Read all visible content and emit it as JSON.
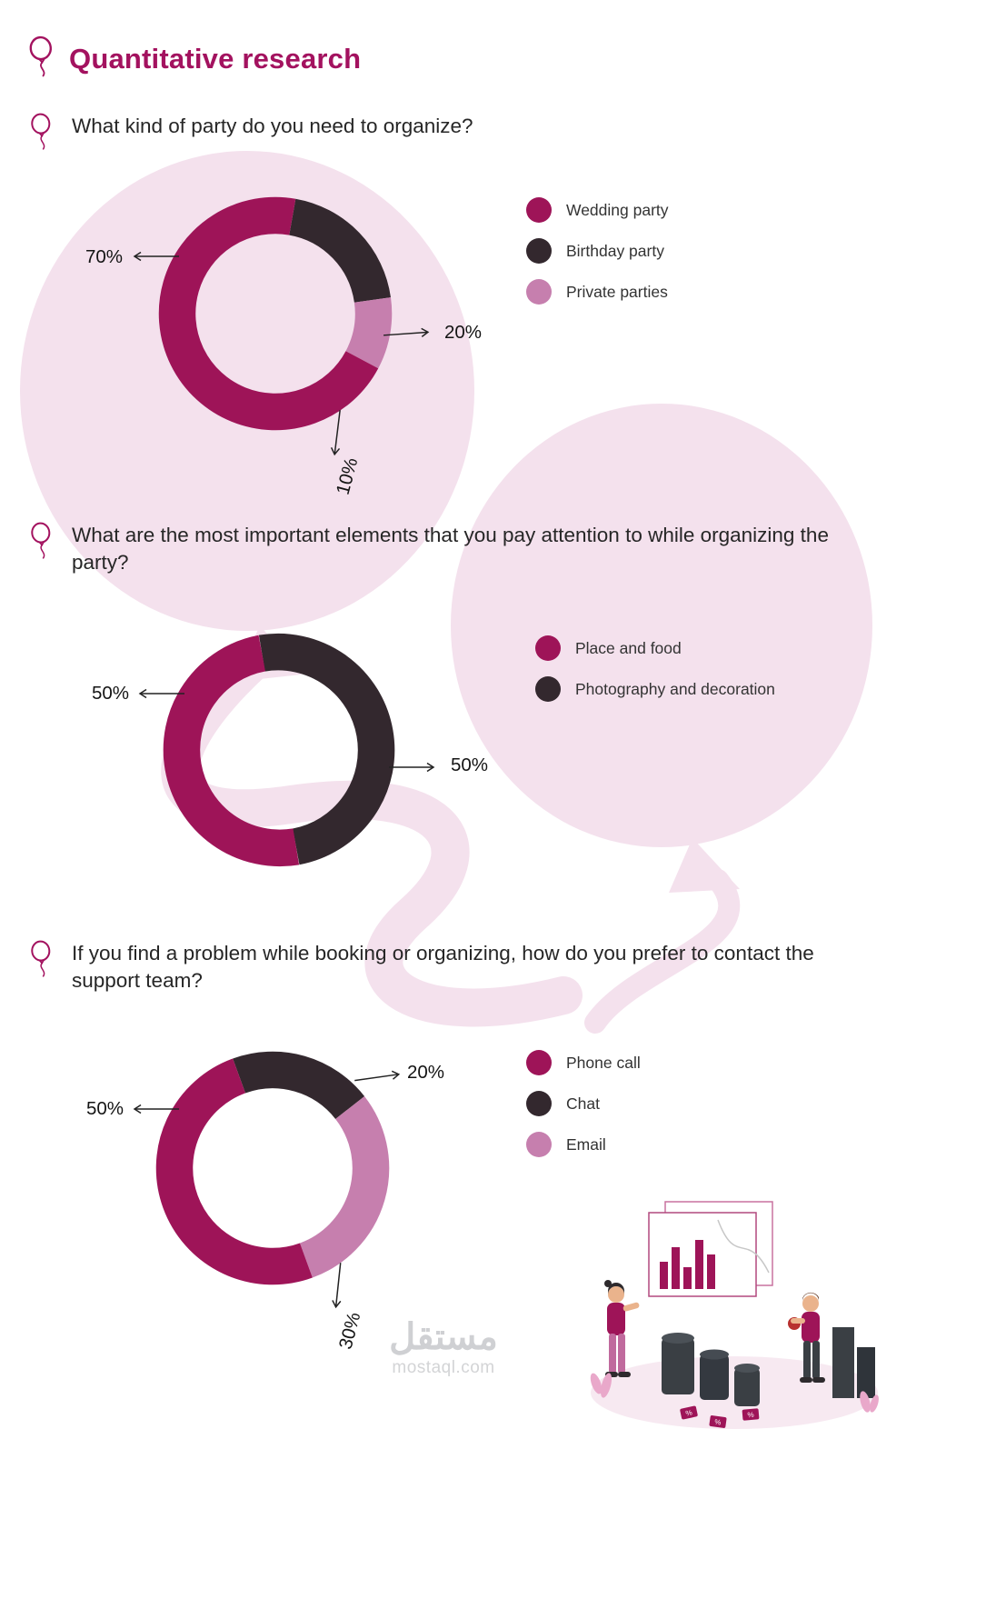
{
  "page": {
    "title": "Quantitative research",
    "watermark": {
      "arabic": "مستقل",
      "latin": "mostaql.com"
    }
  },
  "colors": {
    "accent": "#a3125f",
    "magenta": "#9e1458",
    "dark": "#33282e",
    "pink": "#c67fae",
    "balloon_bg": "#f4e1ed"
  },
  "chart_data": [
    {
      "type": "pie",
      "variant": "donut",
      "question": "What kind of party do you need to organize?",
      "labels": [
        "Wedding party",
        "Birthday party",
        "Private parties"
      ],
      "values": [
        70,
        20,
        10
      ],
      "colors": [
        "#9e1458",
        "#33282e",
        "#c67fae"
      ],
      "callouts": [
        "70%",
        "20%",
        "10%"
      ],
      "start_deg": -80,
      "draw_order": [
        1,
        2,
        0
      ],
      "legend_position": "right"
    },
    {
      "type": "pie",
      "variant": "donut",
      "question": "What are the most important elements that you pay attention to while organizing the party?",
      "labels": [
        "Place and food",
        "Photography and decoration"
      ],
      "values": [
        50,
        50
      ],
      "colors": [
        "#9e1458",
        "#33282e"
      ],
      "callouts": [
        "50%",
        "50%"
      ],
      "start_deg": -100,
      "draw_order": [
        1,
        0
      ],
      "legend_position": "right"
    },
    {
      "type": "pie",
      "variant": "donut",
      "question": "If you find a problem while booking or organizing, how do you prefer to contact the support team?",
      "labels": [
        "Phone call",
        "Chat",
        "Email"
      ],
      "values": [
        50,
        20,
        30
      ],
      "colors": [
        "#9e1458",
        "#33282e",
        "#c67fae"
      ],
      "callouts": [
        "50%",
        "20%",
        "30%"
      ],
      "start_deg": -110,
      "draw_order": [
        1,
        2,
        0
      ],
      "legend_position": "right"
    }
  ]
}
